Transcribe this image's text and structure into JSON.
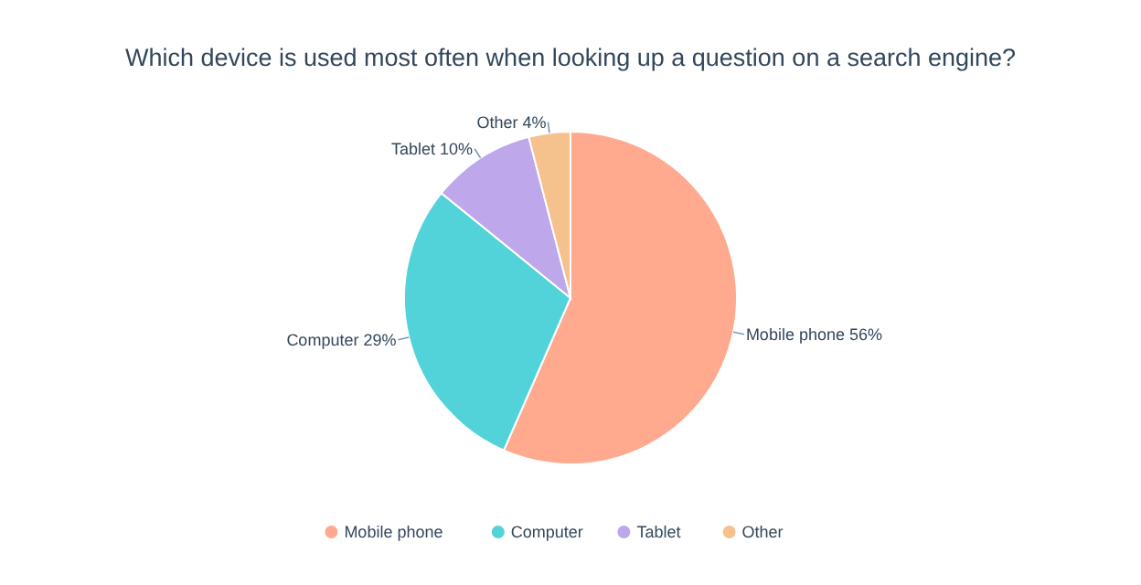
{
  "chart_data": {
    "type": "pie",
    "title": "Which device is used most often when looking up a question on a search engine?",
    "categories": [
      "Mobile phone",
      "Computer",
      "Tablet",
      "Other"
    ],
    "values": [
      56,
      29,
      10,
      4
    ],
    "value_labels": [
      "56%",
      "29%",
      "10%",
      "4%"
    ],
    "colors": [
      "#ffa98f",
      "#51d3d9",
      "#bea7ea",
      "#f5c28e"
    ],
    "legend": "bottom"
  }
}
